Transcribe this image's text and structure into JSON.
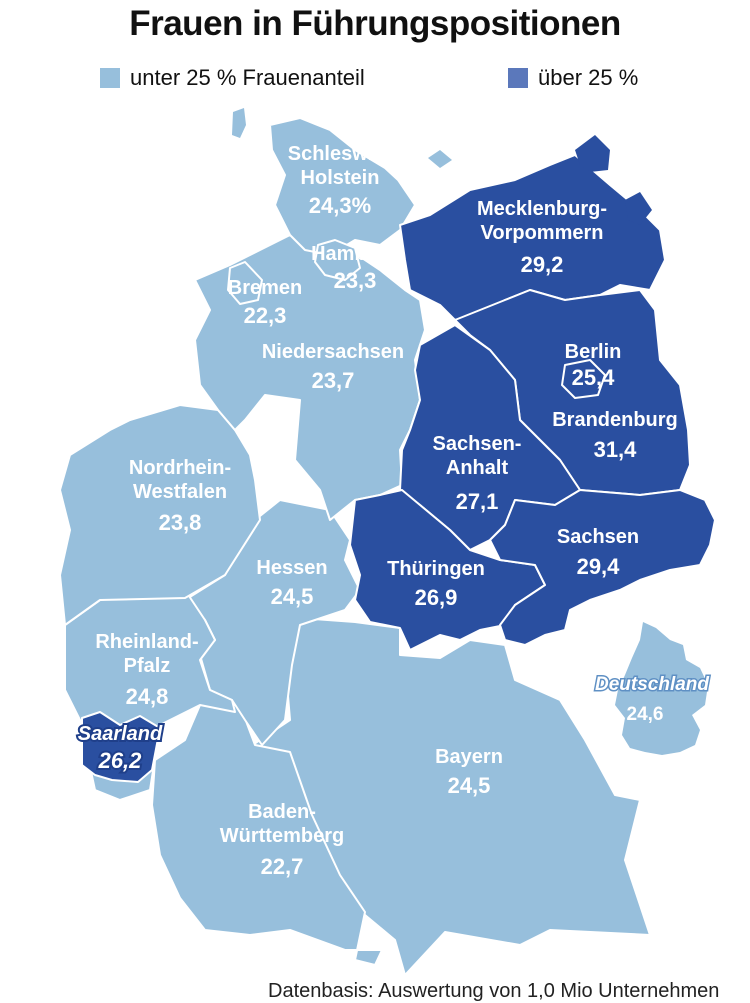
{
  "title": "Frauen in Führungspositionen",
  "legend": {
    "low_label": "unter 25 % Frauenanteil",
    "high_label": "über 25 %",
    "low_color": "#97bfdc",
    "high_color": "#2a4fa0",
    "high_swatch_color": "#5b78bb"
  },
  "regions": [
    {
      "id": "sh",
      "name": "Schleswig-\nHolstein",
      "value": "24,3%",
      "category": "low"
    },
    {
      "id": "hh",
      "name": "Hamburg",
      "value": "23,3",
      "category": "low"
    },
    {
      "id": "hb",
      "name": "Bremen",
      "value": "22,3",
      "category": "low"
    },
    {
      "id": "ni",
      "name": "Niedersachsen",
      "value": "23,7",
      "category": "low"
    },
    {
      "id": "mv",
      "name": "Mecklenburg-\nVorpommern",
      "value": "29,2",
      "category": "high"
    },
    {
      "id": "be",
      "name": "Berlin",
      "value": "25,4",
      "category": "high"
    },
    {
      "id": "bb",
      "name": "Brandenburg",
      "value": "31,4",
      "category": "high"
    },
    {
      "id": "st",
      "name": "Sachsen-\nAnhalt",
      "value": "27,1",
      "category": "high"
    },
    {
      "id": "nw",
      "name": "Nordrhein-\nWestfalen",
      "value": "23,8",
      "category": "low"
    },
    {
      "id": "he",
      "name": "Hessen",
      "value": "24,5",
      "category": "low"
    },
    {
      "id": "th",
      "name": "Thüringen",
      "value": "26,9",
      "category": "high"
    },
    {
      "id": "sn",
      "name": "Sachsen",
      "value": "29,4",
      "category": "high"
    },
    {
      "id": "rp",
      "name": "Rheinland-\nPfalz",
      "value": "24,8",
      "category": "low"
    },
    {
      "id": "sl",
      "name": "Saarland",
      "value": "26,2",
      "category": "high"
    },
    {
      "id": "by",
      "name": "Bayern",
      "value": "24,5",
      "category": "low"
    },
    {
      "id": "bw",
      "name": "Baden-\nWürttemberg",
      "value": "22,7",
      "category": "low"
    }
  ],
  "national": {
    "name": "Deutschland",
    "value": "24,6"
  },
  "footer": "Datenbasis: Auswertung von 1,0 Mio Unternehmen"
}
